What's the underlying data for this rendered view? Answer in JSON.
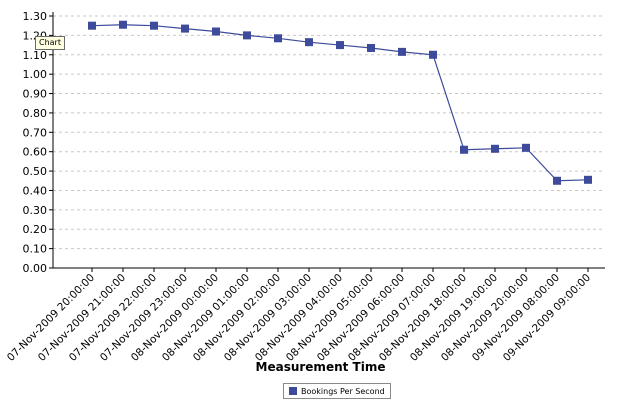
{
  "chart_data": {
    "type": "line",
    "xlabel": "Measurement Time",
    "ylabel": "",
    "ylim": [
      0,
      1.3
    ],
    "yticks": [
      "0.00",
      "0.10",
      "0.20",
      "0.30",
      "0.40",
      "0.50",
      "0.60",
      "0.70",
      "0.80",
      "0.90",
      "1.00",
      "1.10",
      "1.20",
      "1.30"
    ],
    "grid": true,
    "legend_position": "bottom",
    "categories": [
      "07-Nov-2009 20:00:00",
      "07-Nov-2009 21:00:00",
      "07-Nov-2009 22:00:00",
      "07-Nov-2009 23:00:00",
      "08-Nov-2009 00:00:00",
      "08-Nov-2009 01:00:00",
      "08-Nov-2009 02:00:00",
      "08-Nov-2009 03:00:00",
      "08-Nov-2009 04:00:00",
      "08-Nov-2009 05:00:00",
      "08-Nov-2009 06:00:00",
      "08-Nov-2009 07:00:00",
      "08-Nov-2009 18:00:00",
      "08-Nov-2009 19:00:00",
      "08-Nov-2009 20:00:00",
      "09-Nov-2009 08:00:00",
      "09-Nov-2009 09:00:00"
    ],
    "series": [
      {
        "name": "Bookings Per Second",
        "color": "#3d4b9a",
        "values": [
          1.25,
          1.255,
          1.25,
          1.235,
          1.22,
          1.2,
          1.185,
          1.165,
          1.15,
          1.135,
          1.115,
          1.1,
          0.61,
          0.615,
          0.62,
          0.45,
          0.455
        ]
      }
    ]
  },
  "tooltip_text": "Chart",
  "colors": {
    "series": "#3d4b9a",
    "grid": "#c8c8c8",
    "axis": "#000000"
  }
}
